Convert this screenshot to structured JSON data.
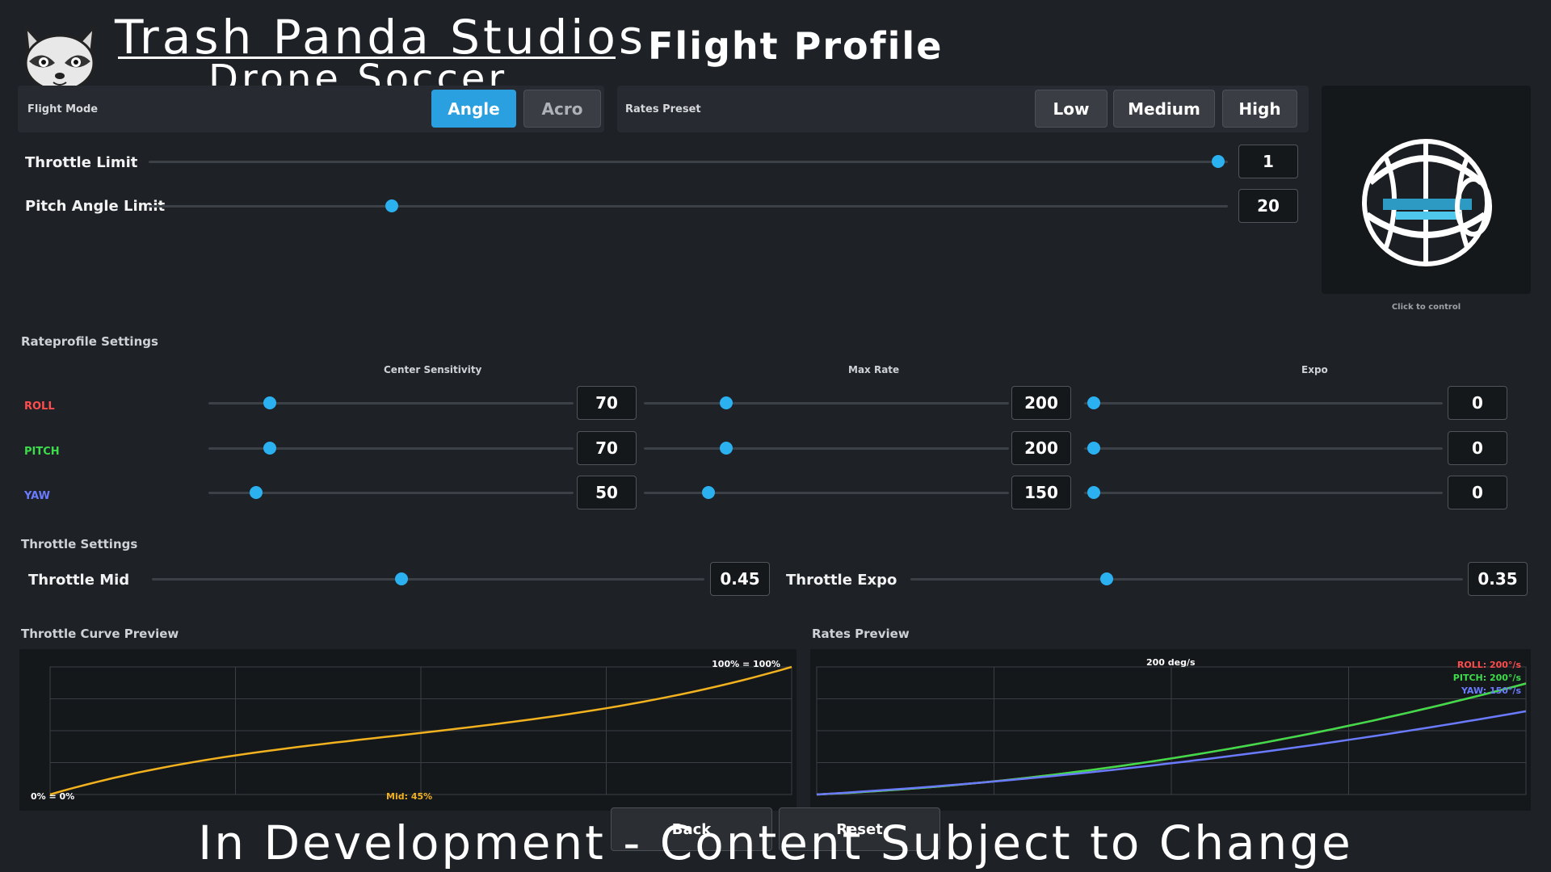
{
  "brand": {
    "title": "Trash Panda Studios",
    "subtitle": "Drone Soccer"
  },
  "page_title": "Flight Profile",
  "flight_mode": {
    "label": "Flight Mode",
    "options": [
      "Angle",
      "Acro"
    ],
    "selected": "Angle"
  },
  "rates_preset": {
    "label": "Rates Preset",
    "options": [
      "Low",
      "Medium",
      "High"
    ]
  },
  "sliders": {
    "throttle_limit": {
      "label": "Throttle Limit",
      "value": "1",
      "fraction": 1.0
    },
    "pitch_angle_limit": {
      "label": "Pitch Angle Limit",
      "value": "20",
      "fraction": 0.22
    }
  },
  "preview": {
    "caption": "Click to control"
  },
  "rateprofile": {
    "title": "Rateprofile Settings",
    "columns": [
      "Center Sensitivity",
      "Max Rate",
      "Expo"
    ],
    "rows": [
      {
        "axis": "ROLL",
        "color": "#ff4d4d",
        "center": "70",
        "max": "200",
        "expo": "0",
        "center_f": 0.15,
        "max_f": 0.21,
        "expo_f": 0.0
      },
      {
        "axis": "PITCH",
        "color": "#3ddc4a",
        "center": "70",
        "max": "200",
        "expo": "0",
        "center_f": 0.15,
        "max_f": 0.21,
        "expo_f": 0.0
      },
      {
        "axis": "YAW",
        "color": "#6a7bff",
        "center": "50",
        "max": "150",
        "expo": "0",
        "center_f": 0.11,
        "max_f": 0.16,
        "expo_f": 0.0
      }
    ]
  },
  "throttle_settings": {
    "title": "Throttle Settings",
    "mid": {
      "label": "Throttle Mid",
      "value": "0.45",
      "fraction": 0.45
    },
    "expo": {
      "label": "Throttle Expo",
      "value": "0.35",
      "fraction": 0.35
    }
  },
  "throttle_curve": {
    "title": "Throttle Curve Preview",
    "top_label": "100% = 100%",
    "bottom_label": "0% = 0%",
    "mid_label": "Mid: 45%",
    "line_color": "#f2b11e"
  },
  "rates_preview": {
    "title": "Rates Preview",
    "top_label": "200 deg/s",
    "legend": [
      {
        "text": "ROLL: 200°/s",
        "color": "#ff4d4d"
      },
      {
        "text": "PITCH: 200°/s",
        "color": "#3ddc4a"
      },
      {
        "text": "YAW: 150°/s",
        "color": "#6a7bff"
      }
    ]
  },
  "footer": {
    "back": "Back",
    "reset": "Reset",
    "banner": "In Development - Content Subject to Change"
  }
}
